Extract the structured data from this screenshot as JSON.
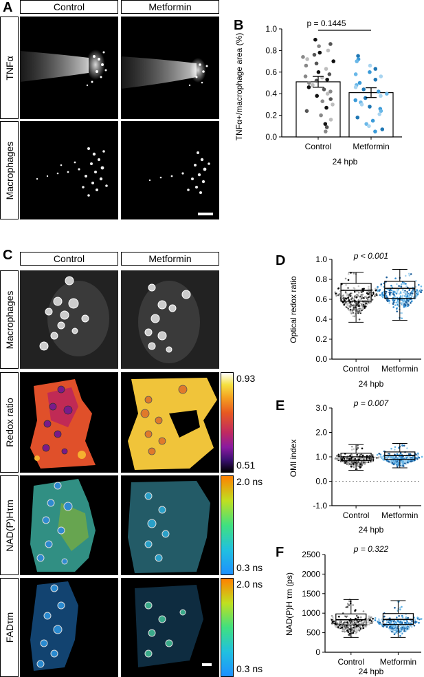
{
  "panels": {
    "A": "A",
    "B": "B",
    "C": "C",
    "D": "D",
    "E": "E",
    "F": "F"
  },
  "section_a": {
    "col_headers": [
      "Control",
      "Metformin"
    ],
    "row_labels": [
      "TNFα",
      "Macrophages"
    ]
  },
  "section_c": {
    "col_headers": [
      "Control",
      "Metformin"
    ],
    "row_labels": [
      "Macrophages",
      "Redox ratio",
      "NAD(P)Hτm",
      "FADτm"
    ],
    "colorbars": [
      {
        "max": "0.93",
        "min": "0.51"
      },
      {
        "max": "2.0 ns",
        "min": "0.3 ns"
      },
      {
        "max": "2.0 ns",
        "min": "0.3 ns"
      }
    ]
  },
  "colors": {
    "control_dark": "#111111",
    "control_light": "#bdbdbd",
    "metformin_dark": "#1f77b4",
    "metformin_light": "#a8d4f0"
  },
  "chart_data": [
    {
      "id": "B",
      "type": "bar",
      "categories": [
        "Control",
        "Metformin"
      ],
      "values": [
        0.51,
        0.41
      ],
      "error": [
        0.05,
        0.045
      ],
      "points": {
        "Control": [
          0.9,
          0.86,
          0.84,
          0.8,
          0.78,
          0.76,
          0.74,
          0.72,
          0.7,
          0.68,
          0.66,
          0.63,
          0.6,
          0.58,
          0.56,
          0.55,
          0.53,
          0.52,
          0.5,
          0.48,
          0.46,
          0.44,
          0.42,
          0.4,
          0.38,
          0.35,
          0.33,
          0.3,
          0.27,
          0.24,
          0.2,
          0.16,
          0.12,
          0.09,
          0.05
        ],
        "Metformin": [
          0.75,
          0.72,
          0.7,
          0.66,
          0.63,
          0.6,
          0.58,
          0.56,
          0.53,
          0.5,
          0.48,
          0.46,
          0.44,
          0.42,
          0.4,
          0.38,
          0.36,
          0.34,
          0.32,
          0.3,
          0.28,
          0.26,
          0.24,
          0.21,
          0.18,
          0.15,
          0.12,
          0.1,
          0.07,
          0.05
        ]
      },
      "ylabel": "TNFα+/macrophage area (%)",
      "xlabel": "24 hpb",
      "ylim": [
        0,
        1.0
      ],
      "yticks": [
        "0.0",
        "0.2",
        "0.4",
        "0.6",
        "0.8",
        "1.0"
      ],
      "annotation": "p = 0.1445"
    },
    {
      "id": "D",
      "type": "box",
      "categories": [
        "Control",
        "Metformin"
      ],
      "boxes": [
        {
          "min": 0.37,
          "q1": 0.58,
          "median": 0.69,
          "q3": 0.76,
          "max": 0.87
        },
        {
          "min": 0.39,
          "q1": 0.61,
          "median": 0.71,
          "q3": 0.78,
          "max": 0.9
        }
      ],
      "ylabel": "Optical redox ratio",
      "xlabel": "24 hpb",
      "ylim": [
        0,
        1.0
      ],
      "yticks": [
        "0.0",
        "0.2",
        "0.4",
        "0.6",
        "0.8",
        "1.0"
      ],
      "annotation": "p < 0.001"
    },
    {
      "id": "E",
      "type": "box",
      "categories": [
        "Control",
        "Metformin"
      ],
      "boxes": [
        {
          "min": 0.45,
          "q1": 0.85,
          "median": 1.0,
          "q3": 1.15,
          "max": 1.5
        },
        {
          "min": 0.55,
          "q1": 0.9,
          "median": 1.05,
          "q3": 1.2,
          "max": 1.55
        }
      ],
      "ylabel": "OMI index",
      "xlabel": "24 hpb",
      "ylim": [
        -1.0,
        3.0
      ],
      "yticks": [
        "-1.0",
        "0.0",
        "1.0",
        "2.0",
        "3.0"
      ],
      "annotation": "p = 0.007"
    },
    {
      "id": "F",
      "type": "box",
      "categories": [
        "Control",
        "Metformin"
      ],
      "boxes": [
        {
          "min": 380,
          "q1": 700,
          "median": 830,
          "q3": 980,
          "max": 1350
        },
        {
          "min": 380,
          "q1": 710,
          "median": 840,
          "q3": 990,
          "max": 1320
        }
      ],
      "ylabel": "NAD(P)H τm (ps)",
      "xlabel": "24 hpb",
      "ylim": [
        0,
        2500
      ],
      "yticks": [
        "0",
        "500",
        "1000",
        "1500",
        "2000",
        "2500"
      ],
      "annotation": "p = 0.322"
    }
  ]
}
